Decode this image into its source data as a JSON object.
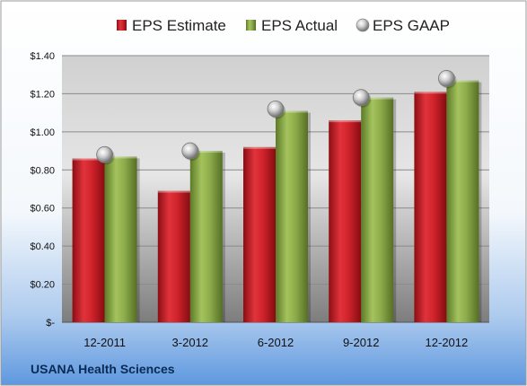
{
  "chart_data": {
    "type": "bar",
    "categories": [
      "12-2011",
      "3-2012",
      "6-2012",
      "9-2012",
      "12-2012"
    ],
    "series": [
      {
        "name": "EPS Estimate",
        "values": [
          0.86,
          0.69,
          0.92,
          1.06,
          1.21
        ],
        "color": "#d0202a"
      },
      {
        "name": "EPS Actual",
        "values": [
          0.87,
          0.9,
          1.11,
          1.18,
          1.27
        ],
        "color": "#8aab48"
      },
      {
        "name": "EPS GAAP",
        "values": [
          0.88,
          0.9,
          1.12,
          1.18,
          1.28
        ],
        "color": "#b8b8b8",
        "marker": "sphere"
      }
    ],
    "ylim": [
      0,
      1.4
    ],
    "yticks": [
      0,
      0.2,
      0.4,
      0.6,
      0.8,
      1.0,
      1.2,
      1.4
    ],
    "ytick_labels": [
      "$-",
      "$0.20",
      "$0.40",
      "$0.60",
      "$0.80",
      "$1.00",
      "$1.20",
      "$1.40"
    ],
    "grid": true,
    "legend_position": "top",
    "source_label": "USANA Health Sciences"
  }
}
